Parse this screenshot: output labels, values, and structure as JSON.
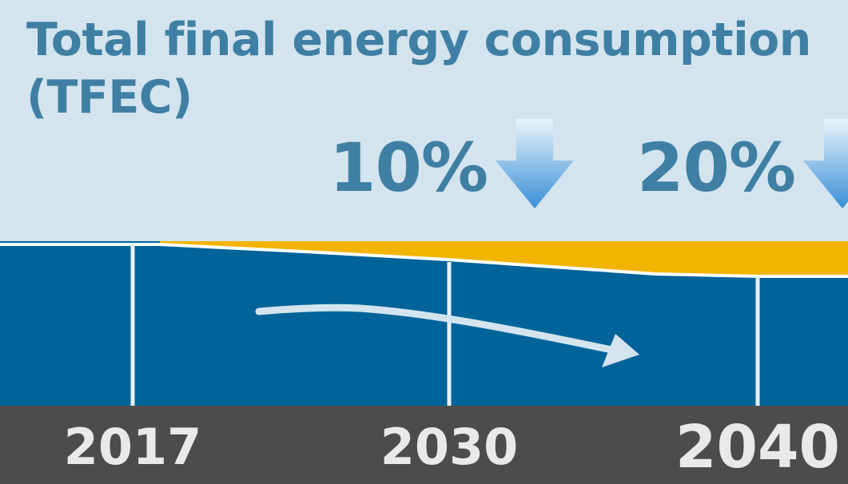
{
  "chart_data": {
    "type": "area",
    "title_line1": "Total final energy consumption",
    "title_line2": "(TFEC)",
    "categories": [
      "2017",
      "2030",
      "2040"
    ],
    "reductions": [
      {
        "label": "10%",
        "year": "2030"
      },
      {
        "label": "20%",
        "year": "2040"
      }
    ],
    "colors": {
      "background": "#d3e4ee",
      "consumption_area": "#00639a",
      "reduction_area": "#f3b400",
      "text": "#3f7fa4",
      "axis_bar": "#4c4c4c"
    }
  }
}
